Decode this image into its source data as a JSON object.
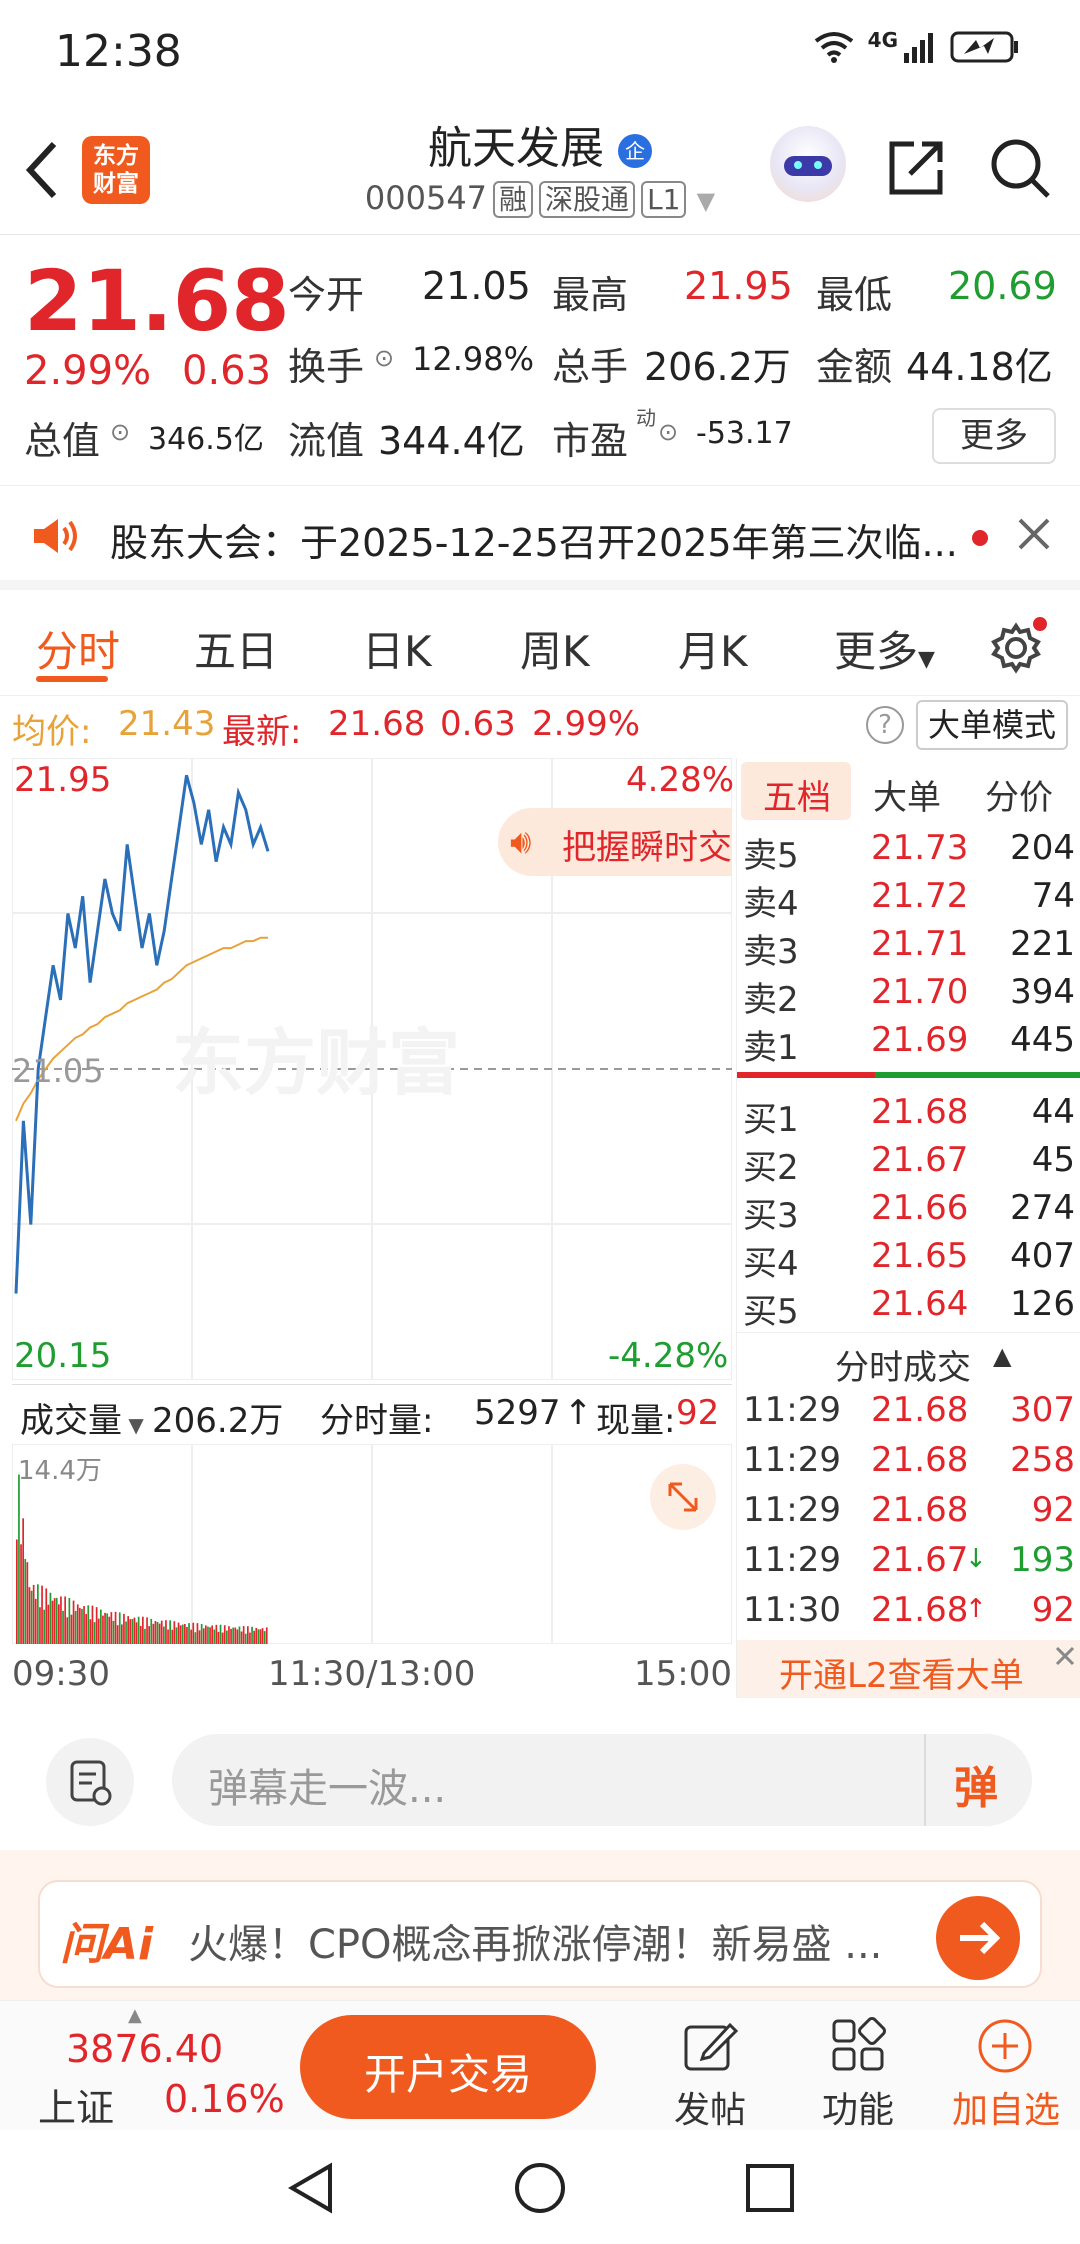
{
  "status": {
    "time": "12:38",
    "network": "4G"
  },
  "header": {
    "logo_text": "东方财富",
    "stock_name": "航天发展",
    "badge": "企",
    "code": "000547",
    "tags": [
      "融",
      "深股通",
      "L1"
    ]
  },
  "quote": {
    "price": "21.68",
    "change_pct": "2.99%",
    "change_amt": "0.63",
    "fields": [
      {
        "label": "今开",
        "value": "21.05"
      },
      {
        "label": "最高",
        "value": "21.95"
      },
      {
        "label": "最低",
        "value": "20.69"
      },
      {
        "label": "换手",
        "value": "12.98%"
      },
      {
        "label": "总手",
        "value": "206.2万"
      },
      {
        "label": "金额",
        "value": "44.18亿"
      },
      {
        "label": "总值",
        "value": "346.5亿"
      },
      {
        "label": "流值",
        "value": "344.4亿"
      },
      {
        "label": "市盈",
        "value": "-53.17",
        "sup": "动"
      }
    ],
    "more_label": "更多"
  },
  "notice": {
    "text": "股东大会：于2025-12-25召开2025年第三次临..."
  },
  "tabs": [
    "分时",
    "五日",
    "日K",
    "周K",
    "月K",
    "更多"
  ],
  "info_line": {
    "avg_label": "均价:",
    "avg_value": "21.43",
    "latest_label": "最新:",
    "latest_value": "21.68",
    "chg": "0.63",
    "pct": "2.99%",
    "mode_btn": "大单模式"
  },
  "chart": {
    "y_top": "21.95",
    "y_mid": "21.05",
    "y_bot": "20.15",
    "pct_top": "4.28%",
    "pct_bot": "-4.28%",
    "watermark": "东方财富",
    "promo": "把握瞬时交",
    "x_labels": [
      "09:30",
      "11:30/13:00",
      "15:00"
    ],
    "colors": {
      "price": "#2a6fb8",
      "avg": "#e8a23a",
      "up": "#e0262b",
      "down": "#1f9d30"
    }
  },
  "chart_data": {
    "type": "line",
    "series": [
      {
        "values": [
          20.4,
          20.9,
          20.6,
          21.05,
          21.2,
          21.35,
          21.25,
          21.5,
          21.4,
          21.55,
          21.3,
          21.45,
          21.6,
          21.5,
          21.45,
          21.7,
          21.55,
          21.4,
          21.5,
          21.35,
          21.45,
          21.6,
          21.75,
          21.9,
          21.82,
          21.7,
          21.8,
          21.65,
          21.75,
          21.7,
          21.85,
          21.8,
          21.7,
          21.75,
          21.68
        ]
      },
      {
        "values": [
          20.9,
          20.95,
          20.98,
          21.02,
          21.05,
          21.08,
          21.1,
          21.12,
          21.14,
          21.15,
          21.17,
          21.18,
          21.2,
          21.21,
          21.22,
          21.24,
          21.25,
          21.26,
          21.27,
          21.28,
          21.3,
          21.31,
          21.33,
          21.35,
          21.36,
          21.37,
          21.38,
          21.39,
          21.4,
          21.4,
          21.41,
          21.42,
          21.42,
          21.43,
          21.43
        ]
      }
    ],
    "ylim": [
      20.15,
      21.95
    ],
    "volume_max_label": "14.4万"
  },
  "volume": {
    "label": "成交量",
    "total": "206.2万",
    "interval_label": "分时量:",
    "interval_value": "5297",
    "now_label": "现量:",
    "now_value": "92"
  },
  "order_book": {
    "tabs": [
      "五档",
      "大单",
      "分价"
    ],
    "sells": [
      {
        "label": "卖5",
        "price": "21.73",
        "vol": "204"
      },
      {
        "label": "卖4",
        "price": "21.72",
        "vol": "74"
      },
      {
        "label": "卖3",
        "price": "21.71",
        "vol": "221"
      },
      {
        "label": "卖2",
        "price": "21.70",
        "vol": "394"
      },
      {
        "label": "卖1",
        "price": "21.69",
        "vol": "445"
      }
    ],
    "buys": [
      {
        "label": "买1",
        "price": "21.68",
        "vol": "44"
      },
      {
        "label": "买2",
        "price": "21.67",
        "vol": "45"
      },
      {
        "label": "买3",
        "price": "21.66",
        "vol": "274"
      },
      {
        "label": "买4",
        "price": "21.65",
        "vol": "407"
      },
      {
        "label": "买5",
        "price": "21.64",
        "vol": "126"
      }
    ],
    "ticks_title": "分时成交",
    "ticks": [
      {
        "time": "11:29",
        "price": "21.68",
        "arrow": "",
        "vol": "307",
        "color": "red"
      },
      {
        "time": "11:29",
        "price": "21.68",
        "arrow": "",
        "vol": "258",
        "color": "red"
      },
      {
        "time": "11:29",
        "price": "21.68",
        "arrow": "",
        "vol": "92",
        "color": "red"
      },
      {
        "time": "11:29",
        "price": "21.67",
        "arrow": "↓",
        "vol": "193",
        "color": "green"
      },
      {
        "time": "11:30",
        "price": "21.68",
        "arrow": "↑",
        "vol": "92",
        "color": "red"
      }
    ],
    "l2_promo": "开通L2查看大单"
  },
  "danmu": {
    "placeholder": "弹幕走一波...",
    "send_label": "弹"
  },
  "ai": {
    "logo": "问Ai",
    "text": "火爆！CPO概念再掀涨停潮！新易盛 ..."
  },
  "bottom": {
    "index_value": "3876.40",
    "index_name": "上证",
    "index_pct": "0.16%",
    "trade_btn": "开户交易",
    "items": [
      "发帖",
      "功能",
      "加自选"
    ]
  }
}
